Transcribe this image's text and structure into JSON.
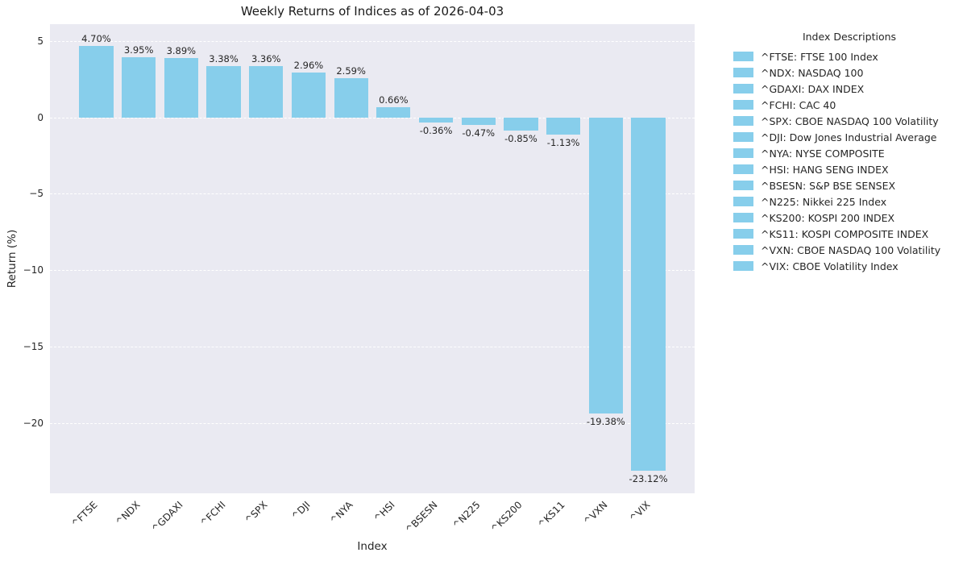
{
  "chart_data": {
    "type": "bar",
    "title": "Weekly Returns of Indices as of 2026-04-03",
    "xlabel": "Index",
    "ylabel": "Return (%)",
    "categories": [
      "^FTSE",
      "^NDX",
      "^GDAXI",
      "^FCHI",
      "^SPX",
      "^DJI",
      "^NYA",
      "^HSI",
      "^BSESN",
      "^N225",
      "^KS200",
      "^KS11",
      "^VXN",
      "^VIX"
    ],
    "values": [
      4.7,
      3.95,
      3.89,
      3.38,
      3.36,
      2.96,
      2.59,
      0.66,
      -0.36,
      -0.47,
      -0.85,
      -1.13,
      -19.38,
      -23.12
    ],
    "value_labels": [
      "4.70%",
      "3.95%",
      "3.89%",
      "3.38%",
      "3.36%",
      "2.96%",
      "2.59%",
      "0.66%",
      "-0.36%",
      "-0.47%",
      "-0.85%",
      "-1.13%",
      "-19.38%",
      "-23.12%"
    ],
    "yticks": [
      5,
      0,
      -5,
      -10,
      -15,
      -20
    ],
    "ytick_labels": [
      "5",
      "0",
      "−5",
      "−10",
      "−15",
      "−20"
    ],
    "ylim": [
      -24.6,
      6.1
    ],
    "grid": true,
    "bar_color": "#87CEEB",
    "plot_bg": "#EAEAF2",
    "legend": {
      "position": "right",
      "title": "Index Descriptions",
      "entries": [
        "^FTSE: FTSE 100 Index",
        "^NDX: NASDAQ 100",
        "^GDAXI: DAX INDEX",
        "^FCHI: CAC 40",
        "^SPX: CBOE NASDAQ 100 Volatility",
        "^DJI: Dow Jones Industrial Average",
        "^NYA: NYSE COMPOSITE",
        "^HSI: HANG SENG INDEX",
        "^BSESN: S&P BSE SENSEX",
        "^N225: Nikkei 225 Index",
        "^KS200: KOSPI 200 INDEX",
        "^KS11: KOSPI COMPOSITE INDEX",
        "^VXN: CBOE NASDAQ 100 Volatility",
        "^VIX: CBOE Volatility Index"
      ]
    }
  }
}
